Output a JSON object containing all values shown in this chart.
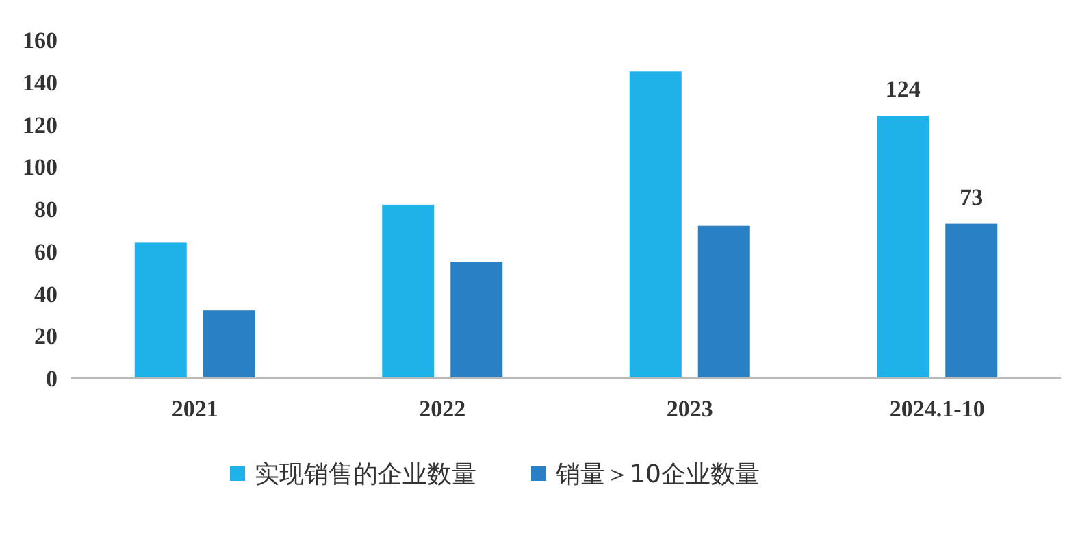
{
  "chart_data": {
    "type": "bar",
    "categories": [
      "2021",
      "2022",
      "2023",
      "2024.1-10"
    ],
    "series": [
      {
        "name": "实现销售的企业数量",
        "color": "#1fb2e8",
        "values": [
          64,
          82,
          145,
          124
        ],
        "value_labels": [
          null,
          null,
          null,
          "124"
        ]
      },
      {
        "name": "销量＞10企业数量",
        "color": "#2a80c4",
        "values": [
          32,
          55,
          72,
          73
        ],
        "value_labels": [
          null,
          null,
          null,
          "73"
        ]
      }
    ],
    "ylim": [
      0,
      160
    ],
    "yticks": [
      0,
      20,
      40,
      60,
      80,
      100,
      120,
      140,
      160
    ],
    "legend": "bottom"
  }
}
